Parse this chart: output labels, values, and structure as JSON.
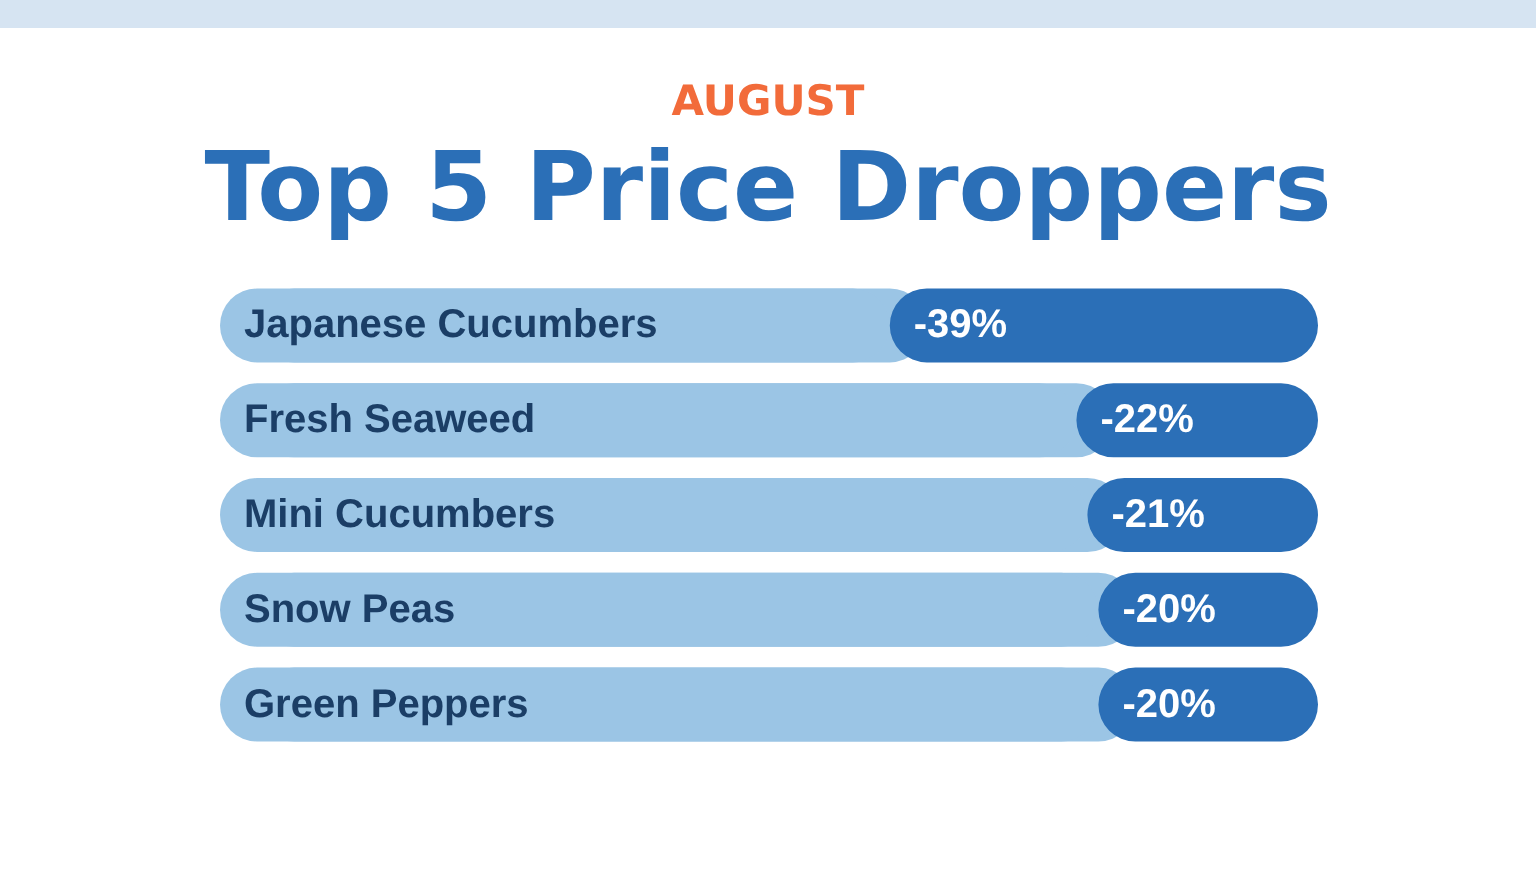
{
  "chart_data": {
    "type": "bar",
    "orientation": "horizontal",
    "stacked": true,
    "subtitle": "AUGUST",
    "title": "Top 5 Price Droppers",
    "categories": [
      "Japanese Cucumbers",
      "Fresh Seaweed",
      "Mini Cucumbers",
      "Snow Peas",
      "Green Peppers"
    ],
    "series": [
      {
        "color": "#2b6fb7",
        "values": [
          -39,
          -22,
          -21,
          -20,
          -20
        ],
        "value_labels": [
          "-39%",
          "-22%",
          "-21%",
          "-20%",
          "-20%"
        ]
      },
      {
        "color": "#9bc5e5",
        "values": [
          -61,
          -78,
          -79,
          -80,
          -80
        ]
      }
    ],
    "xlim": [
      -100,
      0
    ],
    "tick_labels": "y",
    "grid": false
  }
}
